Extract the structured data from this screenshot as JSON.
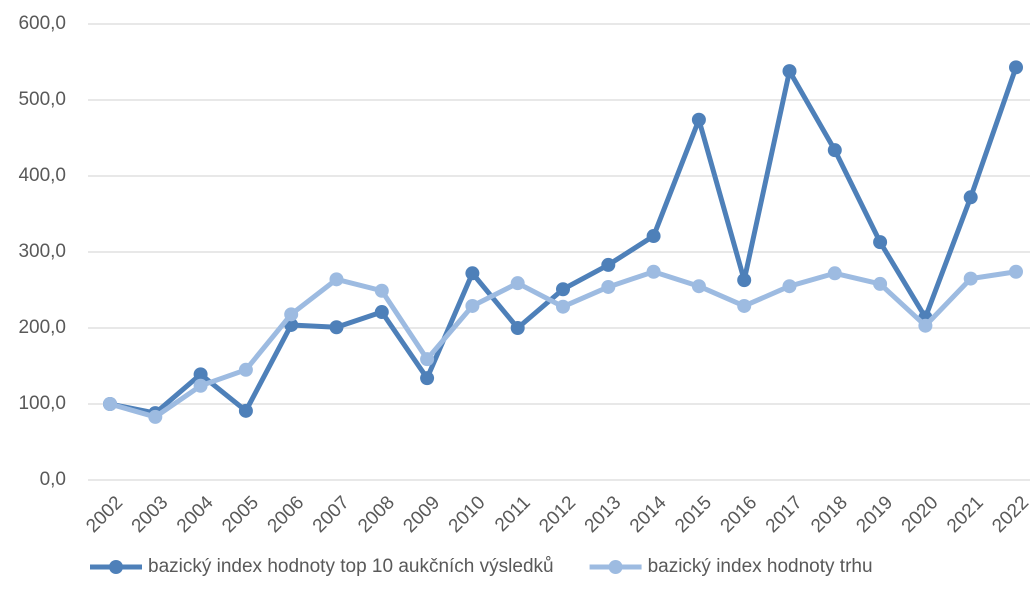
{
  "chart_data": {
    "type": "line",
    "categories": [
      "2002",
      "2003",
      "2004",
      "2005",
      "2006",
      "2007",
      "2008",
      "2009",
      "2010",
      "2011",
      "2012",
      "2013",
      "2014",
      "2015",
      "2016",
      "2017",
      "2018",
      "2019",
      "2020",
      "2021",
      "2022"
    ],
    "series": [
      {
        "name": "bazický index hodnoty top 10 aukčních výsledků",
        "color": "#4e80b9",
        "values": [
          100,
          88,
          139,
          91,
          204,
          201,
          221,
          134,
          272,
          200,
          251,
          283,
          321,
          474,
          263,
          538,
          434,
          313,
          214,
          372,
          543
        ]
      },
      {
        "name": "bazický index hodnoty trhu",
        "color": "#9dbbe1",
        "values": [
          100,
          83,
          124,
          145,
          218,
          264,
          249,
          159,
          229,
          259,
          228,
          254,
          274,
          255,
          229,
          255,
          272,
          258,
          203,
          265,
          274
        ]
      }
    ],
    "ylim": [
      0,
      600
    ],
    "yticks": [
      {
        "value": 0,
        "label": "0,0"
      },
      {
        "value": 100,
        "label": "100,0"
      },
      {
        "value": 200,
        "label": "200,0"
      },
      {
        "value": 300,
        "label": "300,0"
      },
      {
        "value": 400,
        "label": "400,0"
      },
      {
        "value": 500,
        "label": "500,0"
      },
      {
        "value": 600,
        "label": "600,0"
      }
    ],
    "grid": true,
    "legend": "bottom"
  }
}
